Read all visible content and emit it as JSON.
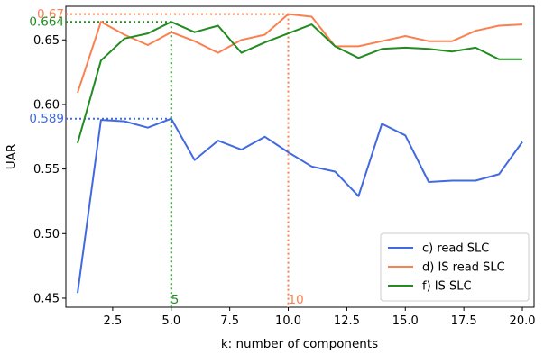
{
  "chart_data": {
    "type": "line",
    "xlabel": "k: number of components",
    "ylabel": "UAR",
    "xlim": [
      0.5,
      20.5
    ],
    "ylim": [
      0.443,
      0.676
    ],
    "x_ticks": [
      2.5,
      5.0,
      7.5,
      10.0,
      12.5,
      15.0,
      17.5,
      20.0
    ],
    "x_tick_labels": [
      "2.5",
      "5.0",
      "7.5",
      "10.0",
      "12.5",
      "15.0",
      "17.5",
      "20.0"
    ],
    "y_ticks": [
      0.45,
      0.5,
      0.55,
      0.6,
      0.65
    ],
    "y_tick_labels": [
      "0.45",
      "0.50",
      "0.55",
      "0.60",
      "0.65"
    ],
    "grid": false,
    "legend_position": "lower-right",
    "x": [
      1,
      2,
      3,
      4,
      5,
      6,
      7,
      8,
      9,
      10,
      11,
      12,
      13,
      14,
      15,
      16,
      17,
      18,
      19,
      20
    ],
    "series": [
      {
        "name": "c) read SLC",
        "color": "#4169e1",
        "values": [
          0.454,
          0.588,
          0.587,
          0.582,
          0.589,
          0.557,
          0.572,
          0.565,
          0.575,
          0.563,
          0.552,
          0.548,
          0.529,
          0.585,
          0.576,
          0.54,
          0.541,
          0.541,
          0.546,
          0.571
        ]
      },
      {
        "name": "d) IS read SLC",
        "color": "#fa8050",
        "values": [
          0.609,
          0.664,
          0.654,
          0.646,
          0.656,
          0.649,
          0.64,
          0.65,
          0.654,
          0.67,
          0.668,
          0.645,
          0.645,
          0.649,
          0.653,
          0.649,
          0.649,
          0.657,
          0.661,
          0.662
        ]
      },
      {
        "name": "f) IS SLC",
        "color": "#228b22",
        "values": [
          0.57,
          0.634,
          0.651,
          0.655,
          0.664,
          0.656,
          0.661,
          0.64,
          0.648,
          0.655,
          0.662,
          0.645,
          0.636,
          0.643,
          0.644,
          0.643,
          0.641,
          0.644,
          0.635,
          0.635
        ]
      }
    ],
    "annotations": [
      {
        "series": "c) read SLC",
        "x": 5,
        "y": 0.589,
        "y_label": "0.589",
        "x_label": ""
      },
      {
        "series": "d) IS read SLC",
        "x": 10,
        "y": 0.67,
        "y_label": "0.67",
        "x_label": "10"
      },
      {
        "series": "f) IS SLC",
        "x": 5,
        "y": 0.664,
        "y_label": "0.664",
        "x_label": "5"
      }
    ]
  }
}
